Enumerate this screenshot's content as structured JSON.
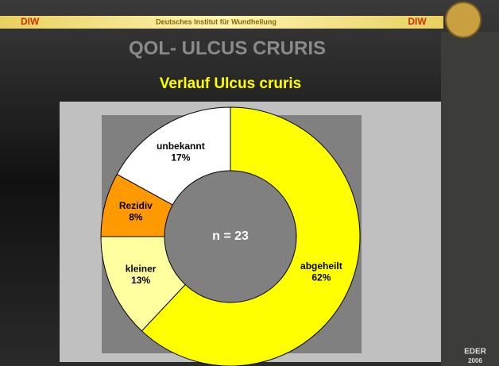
{
  "header": {
    "left": "DIW",
    "center": "Deutsches Institut für Wundheilung",
    "right": "DIW"
  },
  "slide_title": "QOL- ULCUS CRURIS",
  "footer": {
    "line1": "EDER",
    "line2": "2006"
  },
  "chart_data": {
    "type": "donut",
    "title": "Verlauf Ulcus cruris",
    "categories": [
      "abgeheilt",
      "kleiner",
      "Rezidiv",
      "unbekannt"
    ],
    "values": [
      62,
      13,
      8,
      17
    ],
    "value_labels": [
      "62%",
      "13%",
      "8%",
      "17%"
    ],
    "colors": [
      "#ffff00",
      "#ffffa0",
      "#ff9900",
      "#ffffff"
    ],
    "center_label": "n = 23"
  }
}
